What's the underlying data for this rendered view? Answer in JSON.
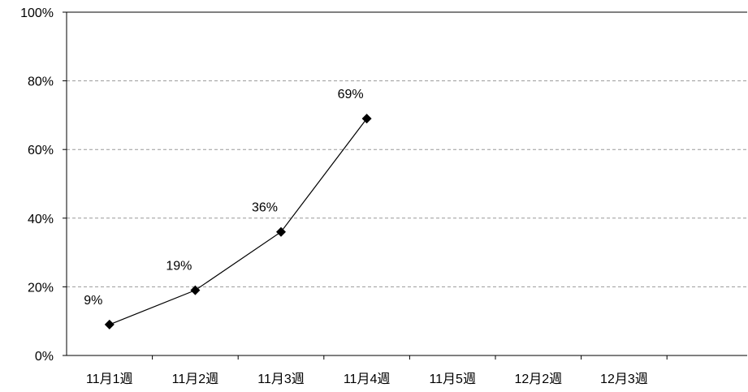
{
  "chart_data": {
    "type": "line",
    "categories": [
      "11月1週",
      "11月2週",
      "11月3週",
      "11月4週",
      "11月5週",
      "12月2週",
      "12月3週"
    ],
    "series": [
      {
        "values": [
          9,
          19,
          36,
          69,
          null,
          null,
          null
        ],
        "labels": [
          "9%",
          "19%",
          "36%",
          "69%",
          "",
          "",
          ""
        ]
      }
    ],
    "y_ticks": [
      "0%",
      "20%",
      "40%",
      "60%",
      "80%",
      "100%"
    ],
    "ylim": [
      0,
      100
    ],
    "y_unit": "%",
    "grid": "horizontal dashed",
    "legend": "none",
    "marker": "diamond",
    "colors": {
      "line": "#000000",
      "grid": "#999999",
      "axis": "#000000"
    }
  }
}
